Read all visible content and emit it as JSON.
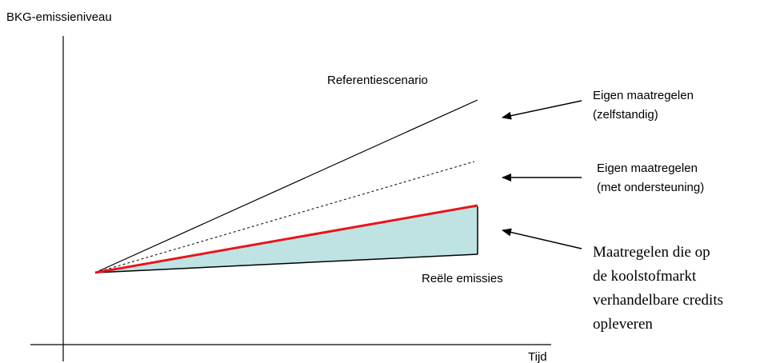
{
  "diagram": {
    "axes": {
      "y_label": "BKG-emissieniveau",
      "x_label": "Tijd"
    },
    "lines": {
      "reference_label": "Referentiescenario",
      "real_label": "Reële emissies"
    },
    "annotations": {
      "own_measures_independent": [
        "Eigen maatregelen",
        "(zelfstandig)"
      ],
      "own_measures_supported": [
        "Eigen maatregelen",
        "(met ondersteuning)"
      ],
      "carbon_market_measures": [
        "Maatregelen die op",
        "de koolstofmarkt",
        "verhandelbare credits",
        "opleveren"
      ]
    },
    "colors": {
      "axis": "#000000",
      "reference_line": "#000000",
      "supported_line": "#000000",
      "red_line": "#e8141c",
      "credits_fill": "#bfe3e3",
      "arrow": "#000000"
    }
  }
}
